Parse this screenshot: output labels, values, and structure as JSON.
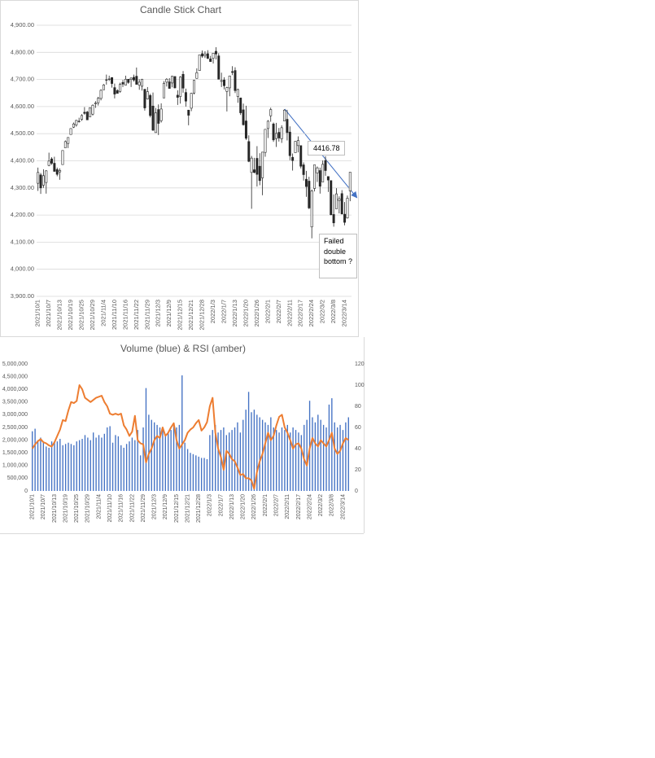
{
  "chart_data": [
    {
      "type": "candlestick",
      "title": "Candle Stick Chart",
      "color": "#262626",
      "grid": true,
      "annotations": [
        "4416.78",
        "Failed double bottom ?"
      ],
      "categories": [
        "2021/10/1",
        null,
        null,
        null,
        "2021/10/7",
        null,
        null,
        null,
        "2021/10/13",
        null,
        null,
        null,
        "2021/10/19",
        null,
        null,
        null,
        "2021/10/25",
        null,
        null,
        null,
        "2021/10/29",
        null,
        null,
        null,
        "2021/11/4",
        null,
        null,
        null,
        "2021/11/10",
        null,
        null,
        null,
        "2021/11/16",
        null,
        null,
        null,
        "2021/11/22",
        null,
        null,
        null,
        "2021/11/29",
        null,
        null,
        null,
        "2021/12/3",
        null,
        null,
        null,
        "2021/12/9",
        null,
        null,
        null,
        "2021/12/15",
        null,
        null,
        null,
        "2021/12/21",
        null,
        null,
        null,
        "2021/12/28",
        null,
        null,
        null,
        "2022/1/3",
        null,
        null,
        null,
        "2022/1/7",
        null,
        null,
        null,
        "2022/1/13",
        null,
        null,
        null,
        "2022/1/20",
        null,
        null,
        null,
        "2022/1/26",
        null,
        null,
        null,
        "2022/2/1",
        null,
        null,
        null,
        "2022/2/7",
        null,
        null,
        null,
        "2022/2/11",
        null,
        null,
        null,
        "2022/2/17",
        null,
        null,
        null,
        "2022/2/24",
        null,
        null,
        null,
        "2022/3/2",
        null,
        null,
        null,
        "2022/3/8",
        null,
        null,
        null,
        "2022/3/14",
        null,
        null
      ],
      "open": [
        4317,
        4348,
        4310,
        4320,
        4383,
        4407,
        4391,
        4368,
        4359,
        4386,
        4448,
        4464,
        4497,
        4524,
        4532,
        4546,
        4553,
        4579,
        4580,
        4562,
        4572,
        4610,
        4614,
        4630,
        4662,
        4699,
        4701,
        4707,
        4670,
        4659,
        4656,
        4689,
        4679,
        4701,
        4700,
        4708,
        4712,
        4679,
        4675,
        4664,
        4628,
        4641,
        4602,
        4504,
        4589,
        4548,
        4632,
        4690,
        4691,
        4687,
        4711,
        4642,
        4637,
        4719,
        4652,
        4587,
        4594,
        4650,
        4704,
        4733,
        4795,
        4788,
        4795,
        4776,
        4778,
        4804,
        4787,
        4693,
        4698,
        4656,
        4669,
        4729,
        4733,
        4637,
        4632,
        4588,
        4547,
        4471,
        4357,
        4367,
        4409,
        4380,
        4337,
        4431,
        4519,
        4566,
        4536,
        4482,
        4505,
        4481,
        4547,
        4553,
        4506,
        4413,
        4430,
        4456,
        4456,
        4385,
        4332,
        4325,
        4156,
        4298,
        4355,
        4364,
        4322,
        4401,
        4342,
        4327,
        4202,
        4223,
        4253,
        4279,
        4203,
        4189,
        4289
      ],
      "high": [
        4375,
        4355,
        4369,
        4365,
        4430,
        4413,
        4415,
        4375,
        4372,
        4439,
        4475,
        4487,
        4520,
        4541,
        4551,
        4559,
        4572,
        4598,
        4584,
        4597,
        4608,
        4620,
        4636,
        4664,
        4683,
        4718,
        4714,
        4708,
        4685,
        4664,
        4688,
        4698,
        4714,
        4701,
        4708,
        4718,
        4744,
        4701,
        4702,
        4664,
        4672,
        4647,
        4652,
        4595,
        4608,
        4612,
        4694,
        4705,
        4705,
        4713,
        4711,
        4660,
        4712,
        4731,
        4666,
        4587,
        4651,
        4698,
        4741,
        4791,
        4807,
        4804,
        4808,
        4787,
        4797,
        4819,
        4797,
        4725,
        4708,
        4673,
        4714,
        4749,
        4745,
        4666,
        4632,
        4611,
        4603,
        4494,
        4418,
        4411,
        4454,
        4428,
        4432,
        4516,
        4550,
        4596,
        4541,
        4540,
        4521,
        4531,
        4590,
        4588,
        4527,
        4427,
        4473,
        4490,
        4456,
        4394,
        4363,
        4341,
        4294,
        4385,
        4379,
        4375,
        4401,
        4417,
        4343,
        4328,
        4276,
        4299,
        4269,
        4292,
        4248,
        4272,
        4358
      ],
      "low": [
        4289,
        4278,
        4300,
        4279,
        4380,
        4385,
        4360,
        4343,
        4330,
        4386,
        4448,
        4447,
        4496,
        4521,
        4526,
        4541,
        4547,
        4570,
        4551,
        4562,
        4567,
        4595,
        4604,
        4623,
        4662,
        4681,
        4694,
        4670,
        4630,
        4648,
        4651,
        4672,
        4679,
        4684,
        4672,
        4692,
        4681,
        4662,
        4659,
        4585,
        4626,
        4560,
        4510,
        4504,
        4495,
        4541,
        4632,
        4674,
        4666,
        4671,
        4667,
        4606,
        4611,
        4651,
        4600,
        4531,
        4583,
        4645,
        4703,
        4733,
        4780,
        4779,
        4775,
        4766,
        4759,
        4774,
        4700,
        4672,
        4663,
        4582,
        4638,
        4716,
        4650,
        4614,
        4569,
        4530,
        4477,
        4395,
        4223,
        4354,
        4305,
        4310,
        4273,
        4415,
        4484,
        4544,
        4470,
        4451,
        4471,
        4466,
        4547,
        4475,
        4402,
        4364,
        4430,
        4431,
        4372,
        4327,
        4267,
        4222,
        4114,
        4287,
        4322,
        4279,
        4322,
        4345,
        4285,
        4199,
        4157,
        4223,
        4206,
        4202,
        4162,
        4187,
        4251
      ],
      "close": [
        4357,
        4300,
        4345,
        4363,
        4399,
        4391,
        4361,
        4350,
        4364,
        4438,
        4471,
        4486,
        4519,
        4536,
        4549,
        4545,
        4567,
        4575,
        4551,
        4596,
        4605,
        4613,
        4631,
        4660,
        4680,
        4697,
        4702,
        4685,
        4646,
        4649,
        4682,
        4683,
        4701,
        4689,
        4705,
        4698,
        4682,
        4690,
        4701,
        4595,
        4655,
        4567,
        4513,
        4577,
        4538,
        4591,
        4686,
        4701,
        4667,
        4712,
        4669,
        4634,
        4709,
        4668,
        4620,
        4568,
        4649,
        4697,
        4725,
        4791,
        4786,
        4793,
        4778,
        4766,
        4797,
        4794,
        4701,
        4696,
        4677,
        4670,
        4713,
        4726,
        4659,
        4663,
        4577,
        4533,
        4483,
        4398,
        4410,
        4357,
        4350,
        4327,
        4432,
        4516,
        4546,
        4589,
        4477,
        4501,
        4484,
        4522,
        4587,
        4504,
        4419,
        4401,
        4472,
        4475,
        4380,
        4349,
        4305,
        4226,
        4289,
        4385,
        4374,
        4306,
        4387,
        4364,
        4329,
        4201,
        4171,
        4278,
        4260,
        4204,
        4173,
        4262,
        4358
      ],
      "ylim": [
        3900,
        4900
      ],
      "yticks": [
        {
          "value": 3900,
          "label": "3,900.00"
        },
        {
          "value": 4000,
          "label": "4,000.00"
        },
        {
          "value": 4100,
          "label": "4,100.00"
        },
        {
          "value": 4200,
          "label": "4,200.00"
        },
        {
          "value": 4300,
          "label": "4,300.00"
        },
        {
          "value": 4400,
          "label": "4,400.00"
        },
        {
          "value": 4500,
          "label": "4,500.00"
        },
        {
          "value": 4600,
          "label": "4,600.00"
        },
        {
          "value": 4700,
          "label": "4,700.00"
        },
        {
          "value": 4800,
          "label": "4,800.00"
        },
        {
          "value": 4900,
          "label": "4,900.00"
        }
      ]
    },
    {
      "type": "combo",
      "title": "Volume (blue) & RSI (amber)",
      "grid": false,
      "categories": [
        "2021/10/1",
        null,
        null,
        null,
        "2021/10/7",
        null,
        null,
        null,
        "2021/10/13",
        null,
        null,
        null,
        "2021/10/19",
        null,
        null,
        null,
        "2021/10/25",
        null,
        null,
        null,
        "2021/10/29",
        null,
        null,
        null,
        "2021/11/4",
        null,
        null,
        null,
        "2021/11/10",
        null,
        null,
        null,
        "2021/11/16",
        null,
        null,
        null,
        "2021/11/22",
        null,
        null,
        null,
        "2021/11/29",
        null,
        null,
        null,
        "2021/12/3",
        null,
        null,
        null,
        "2021/12/9",
        null,
        null,
        null,
        "2021/12/15",
        null,
        null,
        null,
        "2021/12/21",
        null,
        null,
        null,
        "2021/12/28",
        null,
        null,
        null,
        "2022/1/3",
        null,
        null,
        null,
        "2022/1/7",
        null,
        null,
        null,
        "2022/1/13",
        null,
        null,
        null,
        "2022/1/20",
        null,
        null,
        null,
        "2022/1/26",
        null,
        null,
        null,
        "2022/2/1",
        null,
        null,
        null,
        "2022/2/7",
        null,
        null,
        null,
        "2022/2/11",
        null,
        null,
        null,
        "2022/2/17",
        null,
        null,
        null,
        "2022/2/24",
        null,
        null,
        null,
        "2022/3/2",
        null,
        null,
        null,
        "2022/3/8",
        null,
        null,
        null,
        "2022/3/14",
        null,
        null
      ],
      "series": [
        {
          "color": "#4472c4",
          "values": [
            2350000,
            2450000,
            2000000,
            2100000,
            1900000,
            1750000,
            1700000,
            1950000,
            1900000,
            1950000,
            2050000,
            1800000,
            1850000,
            1900000,
            1850000,
            1800000,
            1950000,
            2000000,
            2050000,
            2200000,
            2100000,
            2000000,
            2300000,
            2100000,
            2200000,
            2100000,
            2250000,
            2500000,
            2550000,
            1900000,
            2200000,
            2150000,
            1800000,
            1700000,
            1850000,
            1950000,
            2100000,
            2000000,
            2400000,
            1400000,
            2500000,
            4050000,
            3000000,
            2800000,
            2700000,
            2600000,
            2500000,
            2400000,
            2200000,
            2300000,
            2400000,
            2600000,
            2500000,
            2600000,
            4550000,
            1900000,
            1650000,
            1500000,
            1450000,
            1400000,
            1350000,
            1300000,
            1300000,
            1250000,
            2200000,
            2400000,
            2600000,
            2300000,
            2400000,
            2500000,
            2200000,
            2300000,
            2400000,
            2500000,
            2700000,
            2300000,
            2800000,
            3200000,
            3900000,
            3100000,
            3200000,
            3000000,
            2900000,
            2800000,
            2700000,
            2600000,
            2900000,
            2500000,
            2400000,
            2300000,
            2500000,
            2400000,
            2600000,
            2300000,
            2500000,
            2400000,
            2300000,
            2200000,
            2600000,
            2800000,
            3550000,
            2900000,
            2700000,
            3000000,
            2800000,
            2600000,
            2500000,
            3400000,
            3650000,
            2700000,
            2500000,
            2600000,
            2400000,
            2700000,
            2900000
          ]
        },
        {
          "color": "#ed7d31",
          "axis": "y2",
          "type": "line",
          "values": [
            40,
            44,
            47,
            49,
            46,
            45,
            43,
            42,
            46,
            52,
            58,
            67,
            66,
            76,
            84,
            83,
            85,
            100,
            96,
            88,
            86,
            84,
            86,
            88,
            89,
            90,
            84,
            80,
            73,
            72,
            73,
            72,
            73,
            62,
            58,
            52,
            56,
            71,
            48,
            45,
            44,
            27,
            35,
            40,
            48,
            52,
            50,
            60,
            52,
            55,
            60,
            64,
            48,
            40,
            44,
            48,
            55,
            58,
            60,
            64,
            67,
            57,
            60,
            65,
            80,
            88,
            55,
            40,
            32,
            20,
            38,
            35,
            30,
            28,
            22,
            15,
            16,
            12,
            12,
            10,
            2,
            18,
            28,
            35,
            45,
            55,
            48,
            52,
            62,
            70,
            72,
            60,
            55,
            48,
            40,
            44,
            45,
            40,
            30,
            24,
            40,
            50,
            45,
            42,
            48,
            45,
            42,
            48,
            55,
            40,
            35,
            38,
            45,
            50,
            48
          ]
        }
      ],
      "ylim": [
        0,
        5000000
      ],
      "yticks": [
        0,
        {
          "value": 500000,
          "label": "500,000"
        },
        {
          "value": 1000000,
          "label": "1,000,000"
        },
        {
          "value": 1500000,
          "label": "1,500,000"
        },
        {
          "value": 2000000,
          "label": "2,000,000"
        },
        {
          "value": 2500000,
          "label": "2,500,000"
        },
        {
          "value": 3000000,
          "label": "3,000,000"
        },
        {
          "value": 3500000,
          "label": "3,500,000"
        },
        {
          "value": 4000000,
          "label": "4,000,000"
        },
        {
          "value": 4500000,
          "label": "4,500,000"
        },
        {
          "value": 5000000,
          "label": "5,000,000"
        }
      ],
      "y2lim": [
        0,
        120
      ],
      "y2ticks": [
        0,
        20,
        40,
        60,
        80,
        100,
        120
      ]
    }
  ]
}
